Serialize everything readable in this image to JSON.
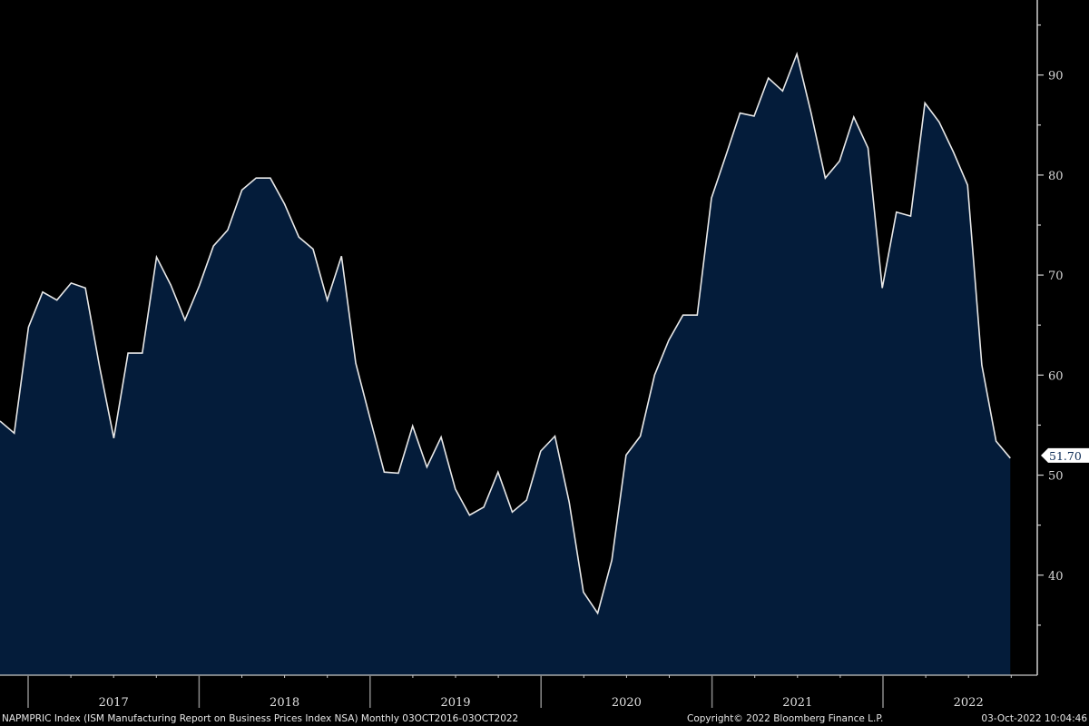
{
  "chart_data": {
    "type": "area",
    "x": [
      "2016-10",
      "2016-11",
      "2016-12",
      "2017-01",
      "2017-02",
      "2017-03",
      "2017-04",
      "2017-05",
      "2017-06",
      "2017-07",
      "2017-08",
      "2017-09",
      "2017-10",
      "2017-11",
      "2017-12",
      "2018-01",
      "2018-02",
      "2018-03",
      "2018-04",
      "2018-05",
      "2018-06",
      "2018-07",
      "2018-08",
      "2018-09",
      "2018-10",
      "2018-11",
      "2018-12",
      "2019-01",
      "2019-02",
      "2019-03",
      "2019-04",
      "2019-05",
      "2019-06",
      "2019-07",
      "2019-08",
      "2019-09",
      "2019-10",
      "2019-11",
      "2019-12",
      "2020-01",
      "2020-02",
      "2020-03",
      "2020-04",
      "2020-05",
      "2020-06",
      "2020-07",
      "2020-08",
      "2020-09",
      "2020-10",
      "2020-11",
      "2020-12",
      "2021-01",
      "2021-02",
      "2021-03",
      "2021-04",
      "2021-05",
      "2021-06",
      "2021-07",
      "2021-08",
      "2021-09",
      "2021-10",
      "2021-11",
      "2021-12",
      "2022-01",
      "2022-02",
      "2022-03",
      "2022-04",
      "2022-05",
      "2022-06",
      "2022-07",
      "2022-08",
      "2022-09"
    ],
    "values": [
      55.4,
      54.2,
      64.8,
      68.3,
      67.5,
      69.2,
      68.7,
      60.8,
      53.7,
      62.2,
      62.2,
      71.8,
      69.0,
      65.5,
      68.9,
      72.9,
      74.5,
      78.5,
      79.7,
      79.7,
      77.1,
      73.8,
      72.6,
      67.5,
      71.9,
      61.2,
      55.7,
      50.3,
      50.2,
      54.9,
      50.8,
      53.8,
      48.6,
      46.0,
      46.8,
      50.3,
      46.3,
      47.5,
      52.4,
      53.9,
      47.3,
      38.3,
      36.2,
      41.5,
      52.0,
      53.9,
      60.0,
      63.5,
      66.0,
      66.0,
      77.7,
      81.9,
      86.2,
      85.9,
      89.7,
      88.4,
      92.1,
      86.2,
      79.7,
      81.4,
      85.8,
      82.7,
      68.7,
      76.3,
      75.9,
      87.2,
      85.3,
      82.3,
      79.0,
      61.0,
      53.4,
      51.7
    ],
    "ylim": [
      30,
      97.5
    ],
    "yticks": [
      "40",
      "50",
      "60",
      "70",
      "80",
      "90"
    ],
    "year_labels": [
      "2017",
      "2018",
      "2019",
      "2020",
      "2021",
      "2022"
    ],
    "last_value_label": "51.70",
    "y_axis_side": "right",
    "grid": false,
    "colors": {
      "background": "#000000",
      "fill": "#041c3a",
      "line": "#e8e8e8",
      "text": "#e0e0e0"
    }
  },
  "footer": {
    "ticker": "NAPMPRIC Index (ISM Manufacturing Report on Business Prices Index NSA)  Monthly 03OCT2016-03OCT2022",
    "copyright": "Copyright© 2022 Bloomberg Finance L.P.",
    "timestamp": "03-Oct-2022 10:04:46"
  }
}
